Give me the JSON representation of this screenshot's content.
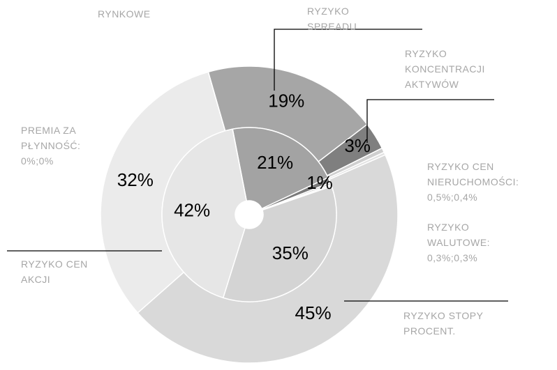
{
  "chart_data": {
    "type": "doughnut",
    "title": "RYZYKO RYNKOWE",
    "categories": [
      "RYZYKO SPREADU",
      "RYZYKO KONCENTRACJI AKTYWÓW",
      "RYZYKO CEN NIERUCHOMOŚCI: 0,5%;0,4%",
      "RYZYKO WALUTOWE: 0,3%;0,3%",
      "RYZYKO STOPY PROCENT.",
      "RYZYKO CEN AKCJI",
      "PREMIA ZA PŁYNNOŚĆ: 0%;0%"
    ],
    "series": [
      {
        "values": [
          19,
          3,
          0.5,
          0.3,
          45,
          32,
          0
        ],
        "value_labels": [
          "19%",
          "3%",
          null,
          null,
          "45%",
          "32%",
          null
        ],
        "colors": [
          "#a6a6a6",
          "#7f7f7f",
          "#cfcfcf",
          "#e2e2e2",
          "#d9d9d9",
          "#ebebeb",
          "#f2f2f2"
        ]
      },
      {
        "values": [
          21,
          1,
          0.4,
          0.3,
          35,
          42,
          0
        ],
        "value_labels": [
          "21%",
          "1%",
          null,
          null,
          "35%",
          "42%",
          null
        ],
        "colors": [
          "#a3a3a3",
          "#7a7a7a",
          "#cfcfcf",
          "#e2e2e2",
          "#d4d4d4",
          "#e6e6e6",
          "#f2f2f2"
        ]
      }
    ]
  }
}
